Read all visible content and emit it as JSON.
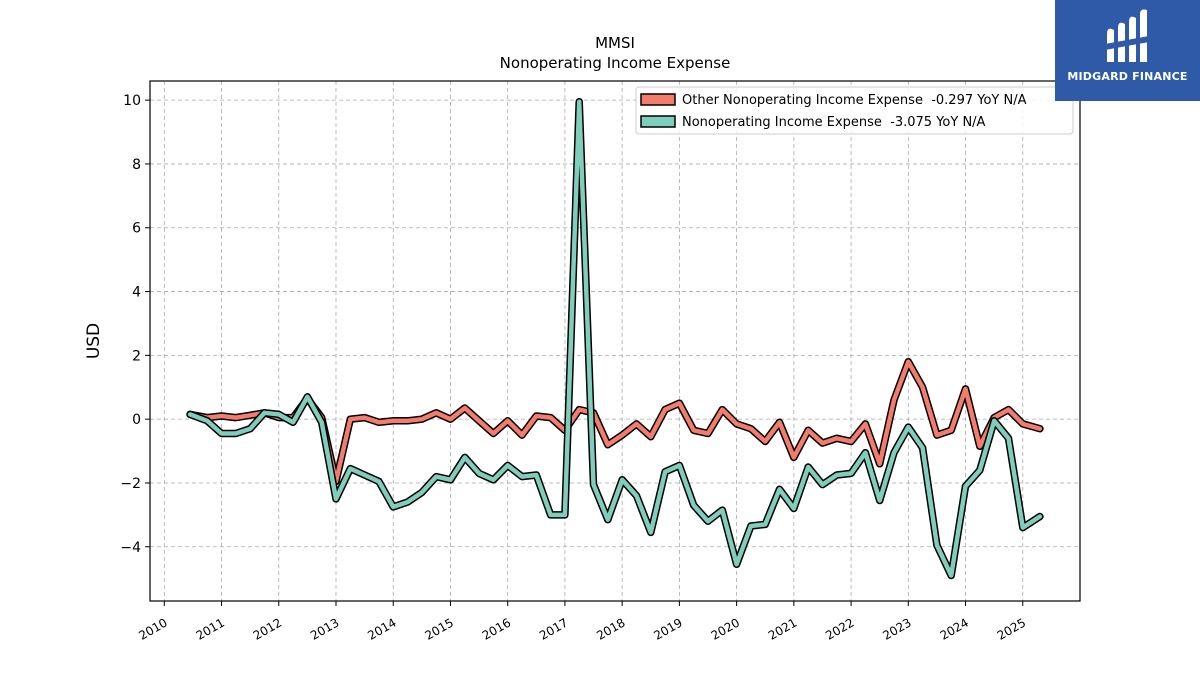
{
  "chart_data": {
    "type": "line",
    "title": "MMSI",
    "subtitle": "Nonoperating Income Expense",
    "xlabel": "",
    "ylabel": "USD",
    "xlim": [
      2009.75,
      2026.0
    ],
    "ylim": [
      -5.7,
      10.6
    ],
    "x_ticks": [
      "2010",
      "2011",
      "2012",
      "2013",
      "2014",
      "2015",
      "2016",
      "2017",
      "2018",
      "2019",
      "2020",
      "2021",
      "2022",
      "2023",
      "2024",
      "2025"
    ],
    "y_ticks": [
      -4,
      -2,
      0,
      2,
      4,
      6,
      8,
      10
    ],
    "grid": true,
    "legend_position": "top-right",
    "series": [
      {
        "name": "Other Nonoperating Income Expense  -0.297 YoY N/A",
        "color": "#f47c6c",
        "points": [
          [
            2010.45,
            0.15
          ],
          [
            2010.75,
            0.05
          ],
          [
            2011.0,
            0.1
          ],
          [
            2011.25,
            0.05
          ],
          [
            2011.5,
            0.12
          ],
          [
            2011.75,
            0.2
          ],
          [
            2012.0,
            0.05
          ],
          [
            2012.25,
            0.05
          ],
          [
            2012.5,
            0.65
          ],
          [
            2012.75,
            0.05
          ],
          [
            2013.0,
            -1.95
          ],
          [
            2013.25,
            0.0
          ],
          [
            2013.5,
            0.05
          ],
          [
            2013.75,
            -0.1
          ],
          [
            2014.0,
            -0.05
          ],
          [
            2014.25,
            -0.05
          ],
          [
            2014.5,
            0.0
          ],
          [
            2014.75,
            0.2
          ],
          [
            2015.0,
            0.0
          ],
          [
            2015.25,
            0.35
          ],
          [
            2015.5,
            -0.05
          ],
          [
            2015.75,
            -0.45
          ],
          [
            2016.0,
            -0.05
          ],
          [
            2016.25,
            -0.5
          ],
          [
            2016.5,
            0.1
          ],
          [
            2016.75,
            0.05
          ],
          [
            2017.0,
            -0.35
          ],
          [
            2017.25,
            0.3
          ],
          [
            2017.5,
            0.2
          ],
          [
            2017.75,
            -0.8
          ],
          [
            2018.0,
            -0.5
          ],
          [
            2018.25,
            -0.15
          ],
          [
            2018.5,
            -0.55
          ],
          [
            2018.75,
            0.3
          ],
          [
            2019.0,
            0.5
          ],
          [
            2019.25,
            -0.35
          ],
          [
            2019.5,
            -0.45
          ],
          [
            2019.75,
            0.3
          ],
          [
            2020.0,
            -0.15
          ],
          [
            2020.25,
            -0.3
          ],
          [
            2020.5,
            -0.7
          ],
          [
            2020.75,
            -0.1
          ],
          [
            2021.0,
            -1.2
          ],
          [
            2021.25,
            -0.35
          ],
          [
            2021.5,
            -0.75
          ],
          [
            2021.75,
            -0.6
          ],
          [
            2022.0,
            -0.7
          ],
          [
            2022.25,
            -0.15
          ],
          [
            2022.5,
            -1.4
          ],
          [
            2022.75,
            0.6
          ],
          [
            2023.0,
            1.8
          ],
          [
            2023.25,
            1.0
          ],
          [
            2023.5,
            -0.5
          ],
          [
            2023.75,
            -0.35
          ],
          [
            2024.0,
            0.95
          ],
          [
            2024.25,
            -0.85
          ],
          [
            2024.5,
            0.05
          ],
          [
            2024.75,
            0.3
          ],
          [
            2025.0,
            -0.15
          ],
          [
            2025.3,
            -0.3
          ]
        ]
      },
      {
        "name": "Nonoperating Income Expense  -3.075 YoY N/A",
        "color": "#7fcdbb",
        "points": [
          [
            2010.45,
            0.15
          ],
          [
            2010.75,
            -0.05
          ],
          [
            2011.0,
            -0.45
          ],
          [
            2011.25,
            -0.45
          ],
          [
            2011.5,
            -0.3
          ],
          [
            2011.75,
            0.2
          ],
          [
            2012.0,
            0.15
          ],
          [
            2012.25,
            -0.1
          ],
          [
            2012.5,
            0.7
          ],
          [
            2012.75,
            -0.1
          ],
          [
            2013.0,
            -2.5
          ],
          [
            2013.25,
            -1.55
          ],
          [
            2013.5,
            -1.75
          ],
          [
            2013.75,
            -1.95
          ],
          [
            2014.0,
            -2.75
          ],
          [
            2014.25,
            -2.6
          ],
          [
            2014.5,
            -2.3
          ],
          [
            2014.75,
            -1.8
          ],
          [
            2015.0,
            -1.9
          ],
          [
            2015.25,
            -1.2
          ],
          [
            2015.5,
            -1.7
          ],
          [
            2015.75,
            -1.9
          ],
          [
            2016.0,
            -1.45
          ],
          [
            2016.25,
            -1.8
          ],
          [
            2016.5,
            -1.75
          ],
          [
            2016.75,
            -3.0
          ],
          [
            2017.0,
            -3.0
          ],
          [
            2017.25,
            9.95
          ],
          [
            2017.5,
            -2.05
          ],
          [
            2017.75,
            -3.15
          ],
          [
            2018.0,
            -1.9
          ],
          [
            2018.25,
            -2.4
          ],
          [
            2018.5,
            -3.55
          ],
          [
            2018.75,
            -1.65
          ],
          [
            2019.0,
            -1.45
          ],
          [
            2019.25,
            -2.7
          ],
          [
            2019.5,
            -3.2
          ],
          [
            2019.75,
            -2.85
          ],
          [
            2020.0,
            -4.55
          ],
          [
            2020.25,
            -3.35
          ],
          [
            2020.5,
            -3.3
          ],
          [
            2020.75,
            -2.2
          ],
          [
            2021.0,
            -2.8
          ],
          [
            2021.25,
            -1.5
          ],
          [
            2021.5,
            -2.05
          ],
          [
            2021.75,
            -1.75
          ],
          [
            2022.0,
            -1.7
          ],
          [
            2022.25,
            -1.05
          ],
          [
            2022.5,
            -2.55
          ],
          [
            2022.75,
            -1.05
          ],
          [
            2023.0,
            -0.25
          ],
          [
            2023.25,
            -0.9
          ],
          [
            2023.5,
            -3.95
          ],
          [
            2023.75,
            -4.9
          ],
          [
            2024.0,
            -2.1
          ],
          [
            2024.25,
            -1.6
          ],
          [
            2024.5,
            -0.05
          ],
          [
            2024.75,
            -0.6
          ],
          [
            2025.0,
            -3.4
          ],
          [
            2025.3,
            -3.05
          ]
        ]
      }
    ]
  },
  "logo": {
    "text": "MIDGARD FINANCE"
  }
}
